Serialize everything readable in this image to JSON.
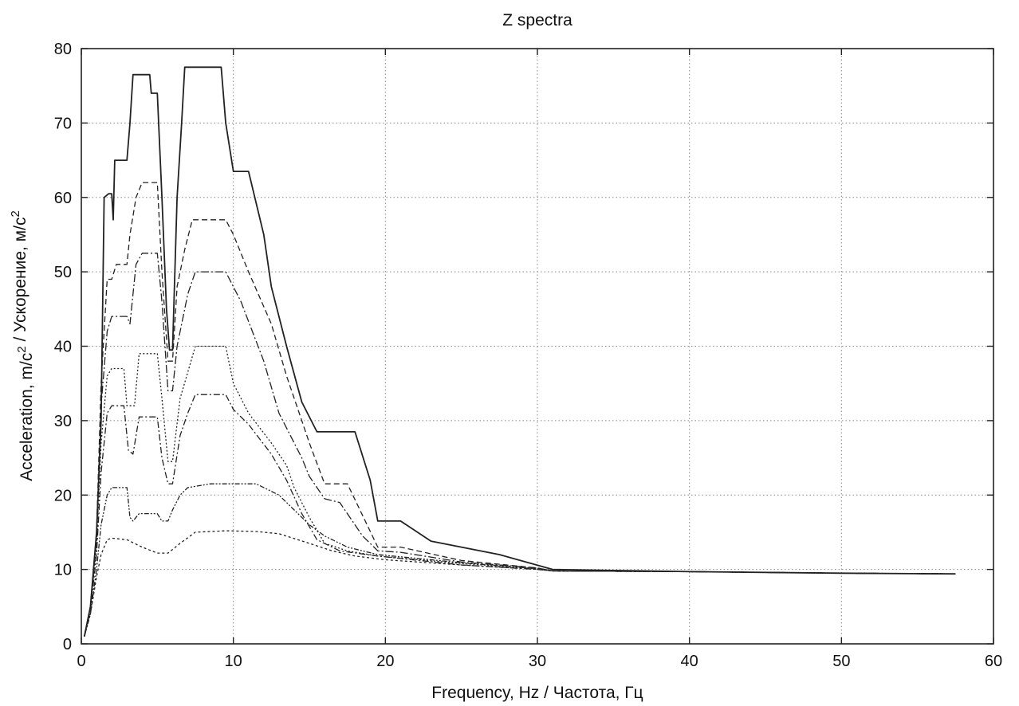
{
  "chart_data": {
    "type": "line",
    "title": "Z spectra",
    "xlabel": "Frequency, Hz  /  Частота, Гц",
    "ylabel": "Acceleration, m/c² / Ускорение, м/с²",
    "xlim": [
      0,
      60
    ],
    "ylim": [
      0,
      80
    ],
    "xticks": [
      0,
      10,
      20,
      30,
      40,
      50,
      60
    ],
    "yticks": [
      0,
      10,
      20,
      30,
      40,
      50,
      60,
      70,
      80
    ],
    "grid": true,
    "line_color": "#222222",
    "series": [
      {
        "style": "solid",
        "points": [
          [
            0.2,
            1
          ],
          [
            0.6,
            5
          ],
          [
            1.0,
            15
          ],
          [
            1.3,
            30
          ],
          [
            1.5,
            60
          ],
          [
            1.8,
            60.5
          ],
          [
            2.0,
            60.5
          ],
          [
            2.1,
            57
          ],
          [
            2.2,
            65
          ],
          [
            3.0,
            65
          ],
          [
            3.2,
            70
          ],
          [
            3.4,
            76.5
          ],
          [
            4.5,
            76.5
          ],
          [
            4.6,
            74
          ],
          [
            5.0,
            74
          ],
          [
            5.3,
            60
          ],
          [
            5.6,
            45
          ],
          [
            5.8,
            39.5
          ],
          [
            6.0,
            39.5
          ],
          [
            6.3,
            60
          ],
          [
            6.6,
            70
          ],
          [
            6.8,
            77.5
          ],
          [
            9.2,
            77.5
          ],
          [
            9.5,
            70
          ],
          [
            10.0,
            63.5
          ],
          [
            11.0,
            63.5
          ],
          [
            12.0,
            55
          ],
          [
            12.5,
            48
          ],
          [
            13.5,
            40
          ],
          [
            14.5,
            32.5
          ],
          [
            15.5,
            28.5
          ],
          [
            18.0,
            28.5
          ],
          [
            19.0,
            22
          ],
          [
            19.5,
            16.5
          ],
          [
            21.0,
            16.5
          ],
          [
            23.0,
            13.8
          ],
          [
            27.5,
            12
          ],
          [
            31.0,
            10
          ],
          [
            40,
            9.7
          ],
          [
            50,
            9.5
          ],
          [
            57.5,
            9.4
          ]
        ]
      },
      {
        "style": "dash",
        "points": [
          [
            0.2,
            1
          ],
          [
            0.6,
            5
          ],
          [
            1.0,
            15
          ],
          [
            1.3,
            35
          ],
          [
            1.7,
            49
          ],
          [
            2.0,
            49
          ],
          [
            2.3,
            51
          ],
          [
            3.0,
            51
          ],
          [
            3.2,
            55
          ],
          [
            3.6,
            60
          ],
          [
            4.0,
            62
          ],
          [
            5.0,
            62
          ],
          [
            5.3,
            50
          ],
          [
            5.7,
            38
          ],
          [
            6.0,
            38
          ],
          [
            6.3,
            48
          ],
          [
            6.8,
            53
          ],
          [
            7.3,
            57
          ],
          [
            9.5,
            57
          ],
          [
            10.0,
            55
          ],
          [
            11.0,
            50
          ],
          [
            12.5,
            43
          ],
          [
            13.5,
            36
          ],
          [
            14.5,
            30
          ],
          [
            15.0,
            27
          ],
          [
            16.0,
            21.5
          ],
          [
            17.5,
            21.5
          ],
          [
            19.5,
            13
          ],
          [
            21.0,
            13
          ],
          [
            25.0,
            11.2
          ],
          [
            30.0,
            10.2
          ],
          [
            31.0,
            9.8
          ],
          [
            40,
            9.7
          ],
          [
            50,
            9.5
          ],
          [
            57.5,
            9.4
          ]
        ]
      },
      {
        "style": "dashlong",
        "points": [
          [
            0.2,
            1
          ],
          [
            0.6,
            5
          ],
          [
            1.0,
            14
          ],
          [
            1.3,
            32
          ],
          [
            1.7,
            42
          ],
          [
            2.0,
            44
          ],
          [
            3.0,
            44
          ],
          [
            3.2,
            43
          ],
          [
            3.6,
            51
          ],
          [
            4.0,
            52.5
          ],
          [
            5.0,
            52.5
          ],
          [
            5.3,
            46
          ],
          [
            5.7,
            34
          ],
          [
            6.0,
            34
          ],
          [
            6.3,
            40
          ],
          [
            7.0,
            47
          ],
          [
            7.5,
            50
          ],
          [
            9.5,
            50
          ],
          [
            10.5,
            46
          ],
          [
            12.0,
            38
          ],
          [
            13.0,
            31
          ],
          [
            14.5,
            25
          ],
          [
            15.0,
            22.5
          ],
          [
            16.0,
            19.5
          ],
          [
            17.0,
            19
          ],
          [
            18.5,
            14.5
          ],
          [
            19.5,
            12.5
          ],
          [
            21.0,
            12.3
          ],
          [
            25.0,
            11
          ],
          [
            30.0,
            10.2
          ],
          [
            31.0,
            9.8
          ],
          [
            40,
            9.7
          ],
          [
            50,
            9.5
          ],
          [
            57.5,
            9.4
          ]
        ]
      },
      {
        "style": "dot",
        "points": [
          [
            0.2,
            1
          ],
          [
            0.6,
            5
          ],
          [
            1.0,
            13
          ],
          [
            1.3,
            27
          ],
          [
            1.7,
            36
          ],
          [
            2.0,
            37
          ],
          [
            2.8,
            37
          ],
          [
            3.0,
            32
          ],
          [
            3.5,
            32
          ],
          [
            3.8,
            39
          ],
          [
            5.0,
            39
          ],
          [
            5.3,
            33
          ],
          [
            5.7,
            24.5
          ],
          [
            6.0,
            24.5
          ],
          [
            6.5,
            33
          ],
          [
            7.0,
            36.5
          ],
          [
            7.5,
            40
          ],
          [
            9.5,
            40
          ],
          [
            10.0,
            35
          ],
          [
            11.0,
            31
          ],
          [
            12.5,
            27
          ],
          [
            13.5,
            24
          ],
          [
            14.0,
            21
          ],
          [
            15.0,
            17
          ],
          [
            16.0,
            13.5
          ],
          [
            17.5,
            12.5
          ],
          [
            19.5,
            11.8
          ],
          [
            25.0,
            10.8
          ],
          [
            30.0,
            10.1
          ],
          [
            31.0,
            9.8
          ],
          [
            40,
            9.7
          ],
          [
            50,
            9.5
          ],
          [
            57.5,
            9.4
          ]
        ]
      },
      {
        "style": "dashdot",
        "points": [
          [
            0.2,
            1
          ],
          [
            0.6,
            4.5
          ],
          [
            1.0,
            12
          ],
          [
            1.3,
            23
          ],
          [
            1.7,
            31
          ],
          [
            2.0,
            32
          ],
          [
            2.8,
            32
          ],
          [
            3.1,
            26
          ],
          [
            3.4,
            25.5
          ],
          [
            3.8,
            30.5
          ],
          [
            5.0,
            30.5
          ],
          [
            5.3,
            25
          ],
          [
            5.7,
            21.5
          ],
          [
            6.0,
            21.5
          ],
          [
            6.5,
            28
          ],
          [
            7.0,
            31
          ],
          [
            7.5,
            33.5
          ],
          [
            9.5,
            33.5
          ],
          [
            10.0,
            31.5
          ],
          [
            11.0,
            29.5
          ],
          [
            12.5,
            25.5
          ],
          [
            13.5,
            22
          ],
          [
            14.5,
            17.5
          ],
          [
            15.5,
            14
          ],
          [
            17.0,
            12.5
          ],
          [
            19.5,
            11.8
          ],
          [
            25.0,
            10.6
          ],
          [
            30.0,
            10.0
          ],
          [
            31.0,
            9.8
          ],
          [
            40,
            9.7
          ],
          [
            50,
            9.5
          ],
          [
            57.5,
            9.4
          ]
        ]
      },
      {
        "style": "dashdotdot",
        "points": [
          [
            0.2,
            1
          ],
          [
            0.6,
            4
          ],
          [
            1.0,
            10
          ],
          [
            1.3,
            16
          ],
          [
            1.7,
            20
          ],
          [
            2.0,
            21
          ],
          [
            3.0,
            21
          ],
          [
            3.2,
            17
          ],
          [
            3.4,
            16.5
          ],
          [
            3.8,
            17.5
          ],
          [
            5.0,
            17.5
          ],
          [
            5.3,
            16.5
          ],
          [
            5.7,
            16.5
          ],
          [
            6.0,
            18
          ],
          [
            6.5,
            20
          ],
          [
            7.0,
            21
          ],
          [
            8.5,
            21.5
          ],
          [
            11.5,
            21.5
          ],
          [
            13.0,
            20
          ],
          [
            14.0,
            18
          ],
          [
            15.0,
            16
          ],
          [
            16.0,
            14.5
          ],
          [
            17.5,
            13
          ],
          [
            19.5,
            12
          ],
          [
            25.0,
            10.9
          ],
          [
            30.0,
            10.1
          ],
          [
            31.0,
            9.8
          ],
          [
            40,
            9.7
          ],
          [
            50,
            9.5
          ],
          [
            57.5,
            9.4
          ]
        ]
      },
      {
        "style": "dashshort",
        "points": [
          [
            0.2,
            1
          ],
          [
            0.6,
            4
          ],
          [
            1.0,
            9
          ],
          [
            1.3,
            12
          ],
          [
            1.7,
            14
          ],
          [
            2.0,
            14.2
          ],
          [
            3.0,
            14
          ],
          [
            4.0,
            13
          ],
          [
            5.0,
            12.2
          ],
          [
            5.7,
            12.2
          ],
          [
            6.5,
            13.5
          ],
          [
            7.5,
            15
          ],
          [
            9.5,
            15.2
          ],
          [
            11.5,
            15.1
          ],
          [
            13.0,
            14.8
          ],
          [
            15.0,
            13.5
          ],
          [
            16.5,
            12.5
          ],
          [
            18.0,
            11.8
          ],
          [
            20.0,
            11.3
          ],
          [
            25.0,
            10.6
          ],
          [
            30.0,
            10.0
          ],
          [
            31.0,
            9.8
          ],
          [
            40,
            9.7
          ],
          [
            50,
            9.5
          ],
          [
            57.5,
            9.4
          ]
        ]
      }
    ]
  }
}
